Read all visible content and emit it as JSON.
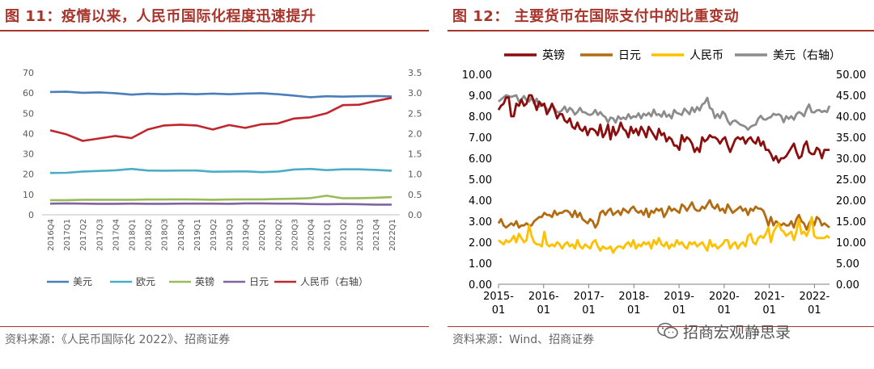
{
  "left": {
    "title": "图 11：疫情以来，人民币国际化程度迅速提升",
    "source": "资料来源：《人民币国际化 2022》、招商证券"
  },
  "right": {
    "title": "图 12：   主要货币在国际支付中的比重变动",
    "source": "资料来源：Wind、招商证券"
  },
  "watermark": "招商宏观静思录",
  "colors": {
    "usd_left": "#4a7ebb",
    "eur_left": "#4bacc6",
    "gbp_left": "#9bbb59",
    "jpy_left": "#8064a2",
    "cny_left": "#c0272d",
    "gbp_right": "#8b0d0d",
    "jpy_right": "#b36b12",
    "cny_right": "#ffc000",
    "usd_right": "#8c8c8c",
    "title": "#a8352c"
  },
  "chart_data": [
    {
      "type": "line",
      "categories": [
        "2016Q4",
        "2017Q1",
        "2017Q2",
        "2017Q3",
        "2017Q4",
        "2018Q1",
        "2018Q2",
        "2018Q3",
        "2018Q4",
        "2019Q1",
        "2019Q2",
        "2019Q3",
        "2019Q4",
        "2020Q1",
        "2020Q2",
        "2020Q3",
        "2020Q4",
        "2021Q1",
        "2021Q2",
        "2021Q3",
        "2021Q4",
        "2022Q1"
      ],
      "ylim": [
        0,
        70
      ],
      "yticks": [
        "0",
        "10",
        "20",
        "30",
        "40",
        "50",
        "60",
        "70"
      ],
      "y2lim": [
        0,
        3.5
      ],
      "y2ticks": [
        "0.0",
        "0.5",
        "1.0",
        "1.5",
        "2.0",
        "2.5",
        "3.0",
        "3.5"
      ],
      "series": [
        {
          "name": "美元",
          "axis": "left",
          "color": "#4a7ebb",
          "values": [
            60.5,
            60.6,
            60.1,
            60.3,
            59.9,
            59.2,
            59.6,
            59.4,
            59.6,
            59.4,
            59.7,
            59.4,
            59.7,
            59.9,
            59.4,
            58.7,
            57.9,
            58.4,
            58.2,
            58.4,
            58.5,
            58.3
          ]
        },
        {
          "name": "欧元",
          "axis": "left",
          "color": "#4bacc6",
          "values": [
            20.6,
            20.7,
            21.3,
            21.6,
            21.9,
            22.6,
            21.8,
            21.7,
            21.8,
            21.8,
            21.2,
            21.3,
            21.4,
            21.0,
            21.3,
            22.3,
            22.6,
            22.0,
            22.4,
            22.4,
            22.1,
            21.7
          ]
        },
        {
          "name": "英镑",
          "axis": "left",
          "color": "#9bbb59",
          "values": [
            7.2,
            7.2,
            7.4,
            7.4,
            7.4,
            7.4,
            7.5,
            7.5,
            7.6,
            7.5,
            7.4,
            7.5,
            7.6,
            7.6,
            7.8,
            7.9,
            8.2,
            9.4,
            8.1,
            8.2,
            8.4,
            8.7
          ]
        },
        {
          "name": "日元",
          "axis": "left",
          "color": "#8064a2",
          "values": [
            5.5,
            5.6,
            5.5,
            5.4,
            5.4,
            5.5,
            5.4,
            5.4,
            5.5,
            5.5,
            5.5,
            5.4,
            5.6,
            5.6,
            5.5,
            5.5,
            5.3,
            5.2,
            5.3,
            5.2,
            5.0,
            5.0
          ]
        },
        {
          "name": "人民币（右轴）",
          "axis": "right",
          "color": "#c0272d",
          "values": [
            2.08,
            1.98,
            1.82,
            1.88,
            1.94,
            1.89,
            2.1,
            2.2,
            2.22,
            2.2,
            2.1,
            2.21,
            2.14,
            2.23,
            2.25,
            2.37,
            2.4,
            2.5,
            2.7,
            2.71,
            2.8,
            2.88
          ]
        }
      ]
    },
    {
      "type": "line",
      "x_ticks": [
        "2015-\n01",
        "2016-\n01",
        "2017-\n01",
        "2018-\n01",
        "2019-\n01",
        "2020-\n01",
        "2021-\n01",
        "2022-\n01"
      ],
      "x_start": "2015-01",
      "x_end": "2022-05",
      "ylim": [
        0,
        10
      ],
      "yticks": [
        "0.00",
        "1.00",
        "2.00",
        "3.00",
        "4.00",
        "5.00",
        "6.00",
        "7.00",
        "8.00",
        "9.00",
        "10.00"
      ],
      "y2lim": [
        0,
        50
      ],
      "y2ticks": [
        "0.00",
        "5.00",
        "10.00",
        "15.00",
        "20.00",
        "25.00",
        "30.00",
        "35.00",
        "40.00",
        "45.00",
        "50.00"
      ],
      "series": [
        {
          "name": "英镑",
          "axis": "left",
          "color": "#8b0d0d",
          "values": [
            8.3,
            8.5,
            8.6,
            8.9,
            8.9,
            8.0,
            8.0,
            8.6,
            8.5,
            8.8,
            8.5,
            8.6,
            9.0,
            9.0,
            8.7,
            8.3,
            8.7,
            8.5,
            8.6,
            8.1,
            8.3,
            8.6,
            8.3,
            7.9,
            8.1,
            8.1,
            7.8,
            7.7,
            7.9,
            7.5,
            7.4,
            7.7,
            7.4,
            7.3,
            7.5,
            7.1,
            7.4,
            7.4,
            7.3,
            7.1,
            7.6,
            7.0,
            7.2,
            7.6,
            6.9,
            7.5,
            7.1,
            7.3,
            7.7,
            7.4,
            7.3,
            7.0,
            7.5,
            7.2,
            7.4,
            7.1,
            7.5,
            7.3,
            7.0,
            7.5,
            7.3,
            7.1,
            6.9,
            7.4,
            7.1,
            7.2,
            6.8,
            7.0,
            6.9,
            6.6,
            6.6,
            6.4,
            7.1,
            6.8,
            7.0,
            6.9,
            6.7,
            6.3,
            6.5,
            6.3,
            7.0,
            6.8,
            6.9,
            7.1,
            7.0,
            7.0,
            6.9,
            6.7,
            6.9,
            7.0,
            6.6,
            6.3,
            6.6,
            6.9,
            7.0,
            6.9,
            7.0,
            6.7,
            6.9,
            7.0,
            6.8,
            6.7,
            7.0,
            6.6,
            6.8,
            6.4,
            6.4,
            6.2,
            5.9,
            6.1,
            5.8,
            6.0,
            6.0,
            6.1,
            6.3,
            6.5,
            6.7,
            6.3,
            6.0,
            6.1,
            6.6,
            6.8,
            6.3,
            6.2,
            6.2,
            6.5,
            6.4,
            6.0,
            6.4,
            6.4,
            6.4
          ]
        },
        {
          "name": "日元",
          "axis": "left",
          "color": "#b36b12",
          "values": [
            2.9,
            3.1,
            2.8,
            2.7,
            2.8,
            2.9,
            2.8,
            3.0,
            2.7,
            2.8,
            2.8,
            2.9,
            2.8,
            2.8,
            3.0,
            3.1,
            3.2,
            3.2,
            3.4,
            3.3,
            3.3,
            3.2,
            3.5,
            3.3,
            3.4,
            3.4,
            3.5,
            3.5,
            3.4,
            3.2,
            3.5,
            3.2,
            3.4,
            3.1,
            3.0,
            2.9,
            3.1,
            3.0,
            2.7,
            2.9,
            3.4,
            3.5,
            3.3,
            3.5,
            3.6,
            3.3,
            3.4,
            3.5,
            3.3,
            3.6,
            3.5,
            3.4,
            3.6,
            3.7,
            3.5,
            3.4,
            3.5,
            3.3,
            3.6,
            3.2,
            3.5,
            3.4,
            3.6,
            3.5,
            3.6,
            3.2,
            3.4,
            3.7,
            3.5,
            3.6,
            3.5,
            3.4,
            3.8,
            3.7,
            3.5,
            3.7,
            3.9,
            3.6,
            3.5,
            3.5,
            3.7,
            3.6,
            3.8,
            4.0,
            3.7,
            3.6,
            3.8,
            3.5,
            3.6,
            3.4,
            3.8,
            3.6,
            3.4,
            3.5,
            3.6,
            3.7,
            3.5,
            3.6,
            3.3,
            3.6,
            3.5,
            3.7,
            3.6,
            3.6,
            3.5,
            3.2,
            2.8,
            3.2,
            2.8,
            3.0,
            2.9,
            2.8,
            2.9,
            2.8,
            2.8,
            3.0,
            2.7,
            3.1,
            3.3,
            3.0,
            2.9,
            2.6,
            2.9,
            3.1,
            2.8,
            3.2,
            3.1,
            2.8,
            2.9,
            2.8,
            2.7
          ]
        },
        {
          "name": "人民币",
          "axis": "left",
          "color": "#ffc000",
          "values": [
            2.1,
            2.0,
            1.9,
            2.1,
            2.0,
            2.1,
            2.3,
            2.0,
            2.4,
            2.2,
            2.0,
            2.1,
            2.8,
            2.3,
            2.0,
            1.9,
            1.9,
            1.8,
            2.5,
            1.9,
            1.8,
            1.9,
            1.8,
            2.0,
            1.9,
            1.7,
            1.9,
            2.0,
            1.8,
            1.9,
            1.7,
            2.1,
            1.8,
            1.7,
            1.9,
            1.8,
            1.7,
            2.0,
            2.1,
            1.8,
            1.6,
            1.8,
            1.7,
            1.7,
            1.8,
            1.5,
            1.7,
            1.8,
            1.8,
            1.7,
            1.9,
            2.0,
            1.8,
            2.1,
            1.7,
            1.9,
            1.8,
            2.0,
            1.9,
            2.0,
            1.7,
            2.1,
            1.9,
            2.2,
            1.9,
            1.8,
            2.0,
            1.7,
            1.9,
            1.8,
            2.1,
            1.9,
            2.0,
            1.8,
            1.7,
            2.0,
            1.9,
            2.0,
            1.8,
            1.9,
            2.0,
            1.8,
            1.6,
            2.1,
            1.8,
            1.9,
            1.7,
            1.8,
            1.9,
            2.1,
            2.1,
            1.7,
            1.9,
            2.0,
            1.7,
            1.9,
            2.0,
            1.8,
            2.3,
            2.4,
            2.0,
            1.9,
            2.2,
            2.3,
            2.2,
            2.4,
            2.7,
            2.0,
            2.5,
            2.7,
            2.9,
            2.6,
            2.5,
            2.3,
            2.4,
            2.5,
            2.1,
            2.5,
            3.1,
            2.4,
            2.5,
            2.3,
            2.6,
            3.2,
            2.3,
            2.2,
            2.2,
            2.2,
            2.2,
            2.3,
            2.2
          ]
        },
        {
          "name": "美元（右轴）",
          "axis": "right",
          "color": "#8c8c8c",
          "values": [
            43.5,
            44.0,
            44.5,
            45.0,
            44.8,
            44.6,
            44.8,
            45.0,
            43.5,
            44.0,
            44.8,
            43.8,
            43.5,
            44.5,
            43.0,
            44.2,
            42.3,
            43.0,
            42.6,
            41.7,
            41.5,
            42.9,
            41.8,
            41.0,
            40.9,
            41.5,
            42.3,
            41.0,
            42.0,
            41.5,
            40.4,
            41.0,
            42.0,
            41.0,
            40.9,
            40.5,
            40.3,
            40.6,
            41.5,
            40.3,
            41.0,
            40.2,
            39.8,
            38.5,
            39.7,
            39.5,
            38.5,
            40.0,
            39.3,
            39.7,
            39.3,
            40.5,
            39.5,
            40.0,
            39.8,
            40.7,
            39.5,
            40.6,
            40.2,
            40.8,
            40.0,
            41.6,
            40.3,
            40.5,
            39.9,
            41.2,
            39.9,
            40.4,
            39.5,
            41.5,
            40.8,
            40.6,
            40.3,
            41.8,
            41.2,
            40.5,
            42.1,
            41.0,
            42.2,
            41.4,
            42.8,
            43.2,
            44.4,
            42.0,
            41.6,
            39.6,
            40.5,
            39.6,
            41.1,
            40.5,
            38.9,
            38.0,
            38.8,
            39.0,
            38.5,
            38.0,
            37.8,
            37.5,
            36.8,
            37.5,
            37.8,
            38.0,
            39.4,
            40.1,
            39.3,
            39.2,
            39.6,
            39.8,
            40.6,
            40.3,
            40.5,
            40.1,
            38.6,
            40.0,
            39.4,
            40.0,
            39.2,
            40.5,
            41.0,
            40.7,
            40.0,
            41.7,
            42.8,
            41.0,
            40.9,
            41.4,
            41.5,
            41.0,
            41.3,
            41.0,
            42.5
          ]
        }
      ]
    }
  ]
}
